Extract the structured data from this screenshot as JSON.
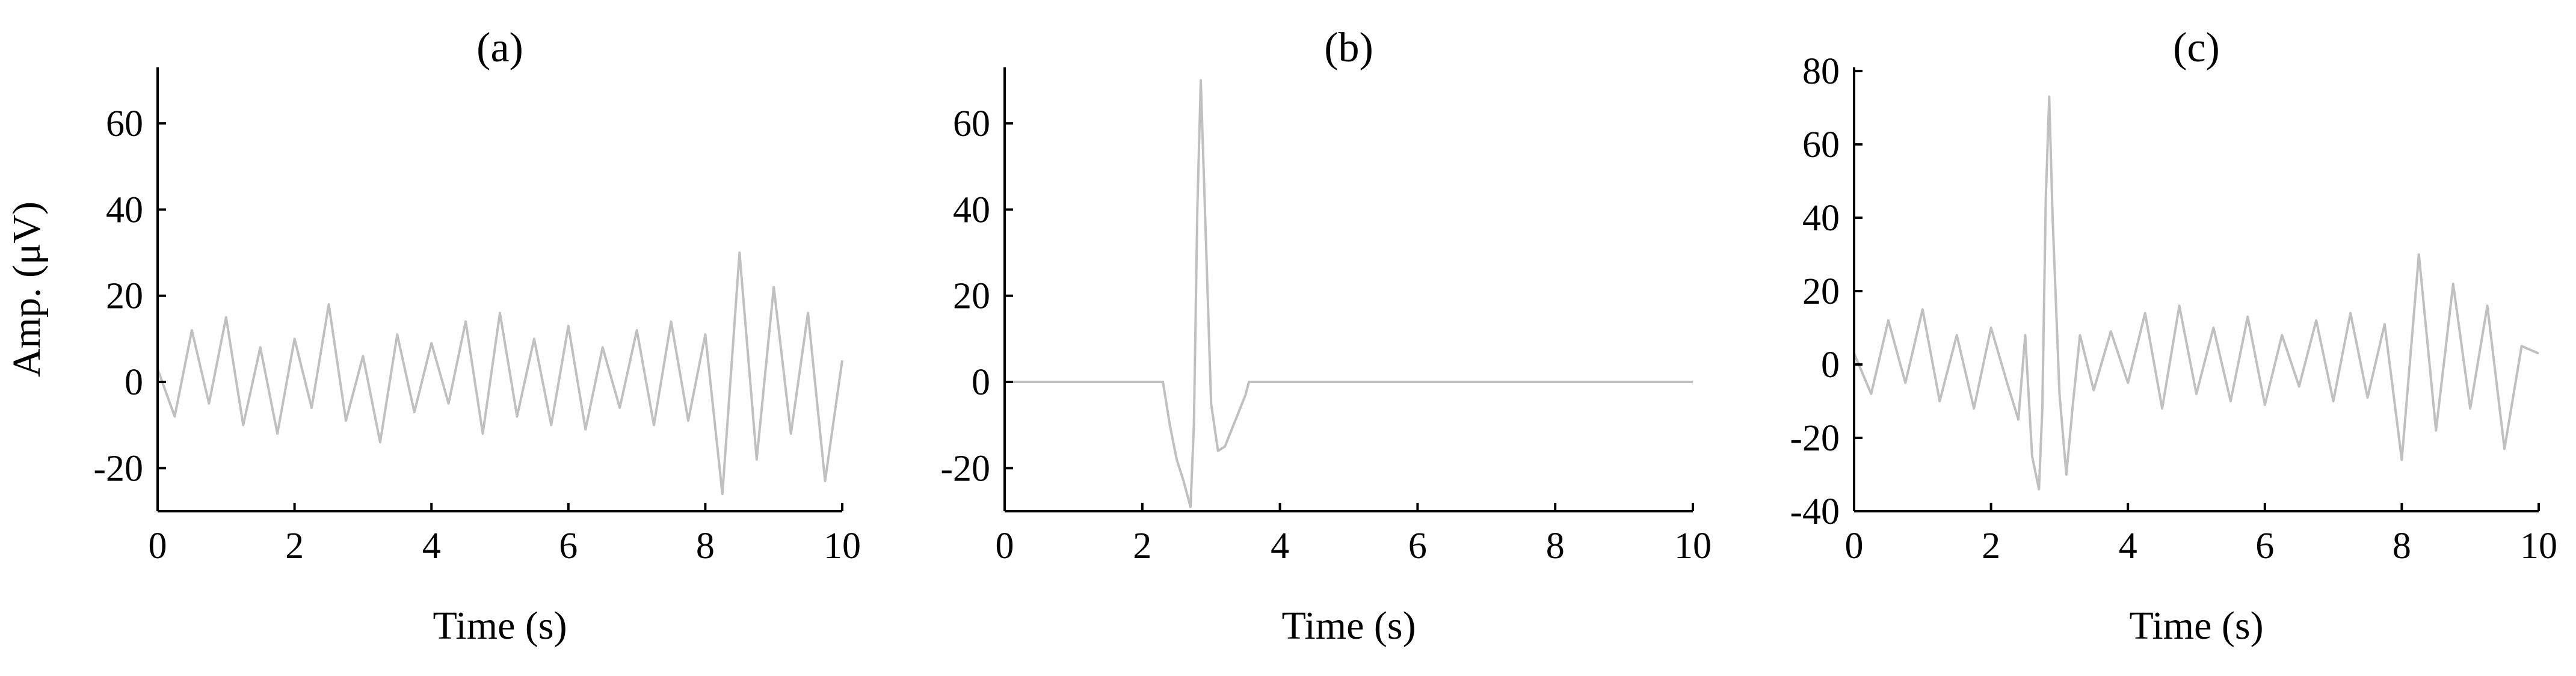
{
  "chart_data": [
    {
      "type": "line",
      "title": "(a)",
      "xlabel": "Time (s)",
      "ylabel": "Amp. (μV)",
      "xlim": [
        0,
        10
      ],
      "ylim": [
        -30,
        73
      ],
      "xticks": [
        0,
        2,
        4,
        6,
        8,
        10
      ],
      "yticks": [
        -20,
        0,
        20,
        40,
        60
      ],
      "grid": false,
      "series": [
        {
          "color": "#c0c0c0",
          "x": [
            0,
            0.25,
            0.5,
            0.75,
            1,
            1.25,
            1.5,
            1.75,
            2,
            2.25,
            2.5,
            2.75,
            3,
            3.25,
            3.5,
            3.75,
            4,
            4.25,
            4.5,
            4.75,
            5,
            5.25,
            5.5,
            5.75,
            6,
            6.25,
            6.5,
            6.75,
            7,
            7.25,
            7.5,
            7.75,
            8,
            8.25,
            8.5,
            8.75,
            9,
            9.25,
            9.5,
            9.75,
            10
          ],
          "values": [
            3,
            -8,
            12,
            -5,
            15,
            -10,
            8,
            -12,
            10,
            -6,
            18,
            -9,
            6,
            -14,
            11,
            -7,
            9,
            -5,
            14,
            -12,
            16,
            -8,
            10,
            -10,
            13,
            -11,
            8,
            -6,
            12,
            -10,
            14,
            -9,
            11,
            -26,
            30,
            -18,
            22,
            -12,
            16,
            -23,
            5
          ]
        }
      ]
    },
    {
      "type": "line",
      "title": "(b)",
      "xlabel": "Time (s)",
      "ylabel": "",
      "xlim": [
        0,
        10
      ],
      "ylim": [
        -30,
        73
      ],
      "xticks": [
        0,
        2,
        4,
        6,
        8,
        10
      ],
      "yticks": [
        -20,
        0,
        20,
        40,
        60
      ],
      "grid": false,
      "series": [
        {
          "color": "#c0c0c0",
          "x": [
            0,
            2.3,
            2.4,
            2.5,
            2.6,
            2.7,
            2.75,
            2.8,
            2.85,
            2.9,
            3.0,
            3.1,
            3.2,
            3.3,
            3.4,
            3.5,
            3.55,
            10
          ],
          "values": [
            0,
            0,
            -10,
            -18,
            -23,
            -29,
            -10,
            40,
            70,
            45,
            -5,
            -16,
            -15,
            -11,
            -7,
            -3,
            0,
            0
          ]
        }
      ]
    },
    {
      "type": "line",
      "title": "(c)",
      "xlabel": "Time (s)",
      "ylabel": "",
      "xlim": [
        0,
        10
      ],
      "ylim": [
        -40,
        81
      ],
      "xticks": [
        0,
        2,
        4,
        6,
        8,
        10
      ],
      "yticks": [
        -40,
        -20,
        0,
        20,
        40,
        60,
        80
      ],
      "grid": false,
      "series": [
        {
          "color": "#c0c0c0",
          "x": [
            0,
            0.25,
            0.5,
            0.75,
            1,
            1.25,
            1.5,
            1.75,
            2,
            2.25,
            2.4,
            2.5,
            2.6,
            2.7,
            2.75,
            2.8,
            2.85,
            2.9,
            3.0,
            3.1,
            3.2,
            3.3,
            3.5,
            3.75,
            4,
            4.25,
            4.5,
            4.75,
            5,
            5.25,
            5.5,
            5.75,
            6,
            6.25,
            6.5,
            6.75,
            7,
            7.25,
            7.5,
            7.75,
            8,
            8.25,
            8.5,
            8.75,
            9,
            9.25,
            9.5,
            9.75,
            10
          ],
          "values": [
            3,
            -8,
            12,
            -5,
            15,
            -10,
            8,
            -12,
            10,
            -6,
            -15,
            8,
            -25,
            -34,
            -12,
            45,
            73,
            40,
            -8,
            -30,
            -10,
            8,
            -7,
            9,
            -5,
            14,
            -12,
            16,
            -8,
            10,
            -10,
            13,
            -11,
            8,
            -6,
            12,
            -10,
            14,
            -9,
            11,
            -26,
            30,
            -18,
            22,
            -12,
            16,
            -23,
            5,
            3
          ]
        }
      ]
    }
  ]
}
